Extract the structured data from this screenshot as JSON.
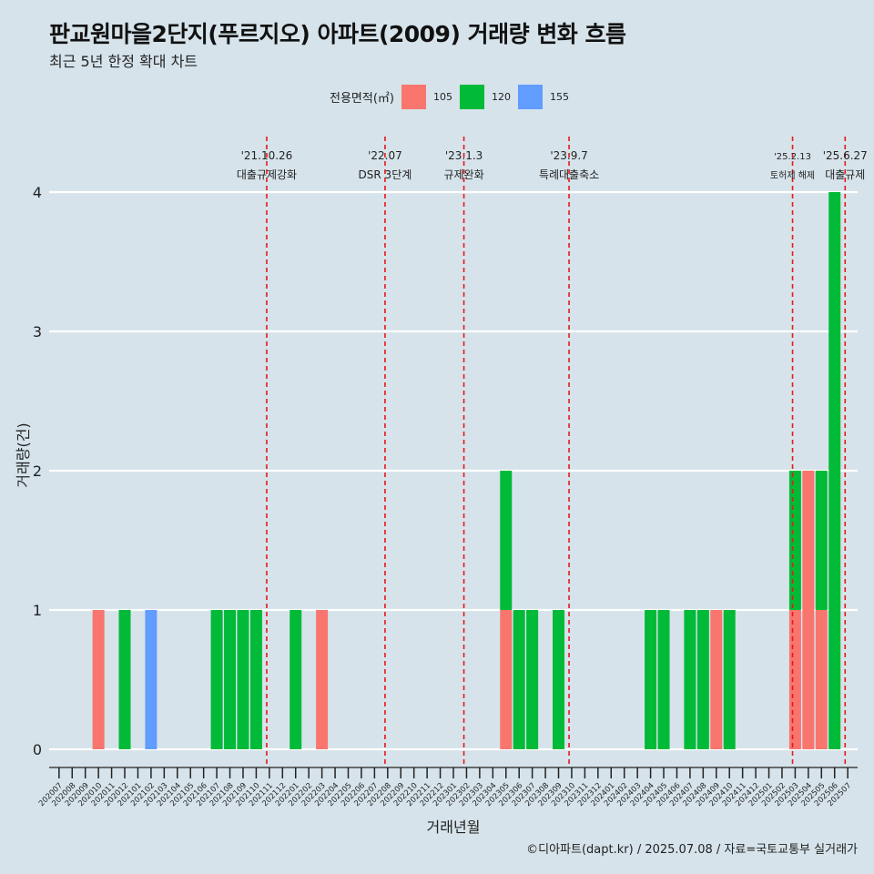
{
  "title": "판교원마을2단지(푸르지오) 아파트(2009) 거래량 변화 흐름",
  "subtitle": "최근 5년 한정 확대 차트",
  "legend": {
    "title": "전용면적(㎡)",
    "items": [
      {
        "label": "105",
        "color": "#f8766d"
      },
      {
        "label": "120",
        "color": "#00ba38"
      },
      {
        "label": "155",
        "color": "#619cff"
      }
    ]
  },
  "caption": "©디아파트(dapt.kr) / 2025.07.08 / 자료=국토교통부 실거래가",
  "chart_data": {
    "type": "bar",
    "stacked": true,
    "xlabel": "거래년월",
    "ylabel": "거래량(건)",
    "ylim": [
      0,
      4
    ],
    "yticks": [
      0,
      1,
      2,
      3,
      4
    ],
    "grid": true,
    "legend_position": "top",
    "categories": [
      "202007",
      "202008",
      "202009",
      "202010",
      "202011",
      "202012",
      "202101",
      "202102",
      "202103",
      "202104",
      "202105",
      "202106",
      "202107",
      "202108",
      "202109",
      "202110",
      "202111",
      "202112",
      "202201",
      "202202",
      "202203",
      "202204",
      "202205",
      "202206",
      "202207",
      "202208",
      "202209",
      "202210",
      "202211",
      "202212",
      "202301",
      "202302",
      "202303",
      "202304",
      "202305",
      "202306",
      "202307",
      "202308",
      "202309",
      "202310",
      "202311",
      "202312",
      "202401",
      "202402",
      "202403",
      "202404",
      "202405",
      "202406",
      "202407",
      "202408",
      "202409",
      "202410",
      "202411",
      "202412",
      "202501",
      "202502",
      "202503",
      "202504",
      "202505",
      "202506",
      "202507"
    ],
    "tick_labels": [
      "202007",
      "202008",
      "202009",
      "202010",
      "202011",
      "202012",
      "202101",
      "202102",
      "202103",
      "202104",
      "202105",
      "202106",
      "202107",
      "202108",
      "202109",
      "202110",
      "202111",
      "202112",
      "202201",
      "202202",
      "202203",
      "202204",
      "202205",
      "202206",
      "202207",
      "202208",
      "202209",
      "202210",
      "202211",
      "202212",
      "202301",
      "202302",
      "202303",
      "202304",
      "202305",
      "202306",
      "202307",
      "202308",
      "202309",
      "202310",
      "202311",
      "202312",
      "202401",
      "202402",
      "202403",
      "202404",
      "202405",
      "202406",
      "202407",
      "202408",
      "202409",
      "202410",
      "202411",
      "202412",
      "202501",
      "202502",
      "202503",
      "202504",
      "202505",
      "202506",
      "202507"
    ],
    "series": [
      {
        "name": "105",
        "color": "#f8766d",
        "values": [
          0,
          0,
          0,
          1,
          0,
          0,
          0,
          0,
          0,
          0,
          0,
          0,
          0,
          0,
          0,
          0,
          0,
          0,
          0,
          0,
          1,
          0,
          0,
          0,
          0,
          0,
          0,
          0,
          0,
          0,
          0,
          0,
          0,
          0,
          1,
          0,
          0,
          0,
          0,
          0,
          0,
          0,
          0,
          0,
          0,
          0,
          0,
          0,
          0,
          0,
          1,
          0,
          0,
          0,
          0,
          0,
          1,
          2,
          1,
          0,
          0
        ]
      },
      {
        "name": "120",
        "color": "#00ba38",
        "values": [
          0,
          0,
          0,
          0,
          0,
          1,
          0,
          0,
          0,
          0,
          0,
          0,
          1,
          1,
          1,
          1,
          0,
          0,
          1,
          0,
          0,
          0,
          0,
          0,
          0,
          0,
          0,
          0,
          0,
          0,
          0,
          0,
          0,
          0,
          1,
          1,
          1,
          0,
          1,
          0,
          0,
          0,
          0,
          0,
          0,
          1,
          1,
          0,
          1,
          1,
          0,
          1,
          0,
          0,
          0,
          0,
          1,
          0,
          1,
          4,
          0
        ]
      },
      {
        "name": "155",
        "color": "#619cff",
        "values": [
          0,
          0,
          0,
          0,
          0,
          0,
          0,
          1,
          0,
          0,
          0,
          0,
          0,
          0,
          0,
          0,
          0,
          0,
          0,
          0,
          0,
          0,
          0,
          0,
          0,
          0,
          0,
          0,
          0,
          0,
          0,
          0,
          0,
          0,
          0,
          0,
          0,
          0,
          0,
          0,
          0,
          0,
          0,
          0,
          0,
          0,
          0,
          0,
          0,
          0,
          0,
          0,
          0,
          0,
          0,
          0,
          0,
          0,
          0,
          0,
          0
        ]
      }
    ],
    "annotations": [
      {
        "date": "'21.10.26",
        "label": "대출규제강화",
        "position": 15.8
      },
      {
        "date": "'22.07",
        "label": "DSR 3단계",
        "position": 24.8
      },
      {
        "date": "'23.1.3",
        "label": "규제완화",
        "position": 30.8
      },
      {
        "date": "'23.9.7",
        "label": "특례대출축소",
        "position": 38.8
      },
      {
        "date": "'25.2.13",
        "label": "토허제 해제",
        "position": 55.8
      },
      {
        "date": "'25.6.27",
        "label": "대출규제",
        "position": 59.8
      }
    ]
  }
}
